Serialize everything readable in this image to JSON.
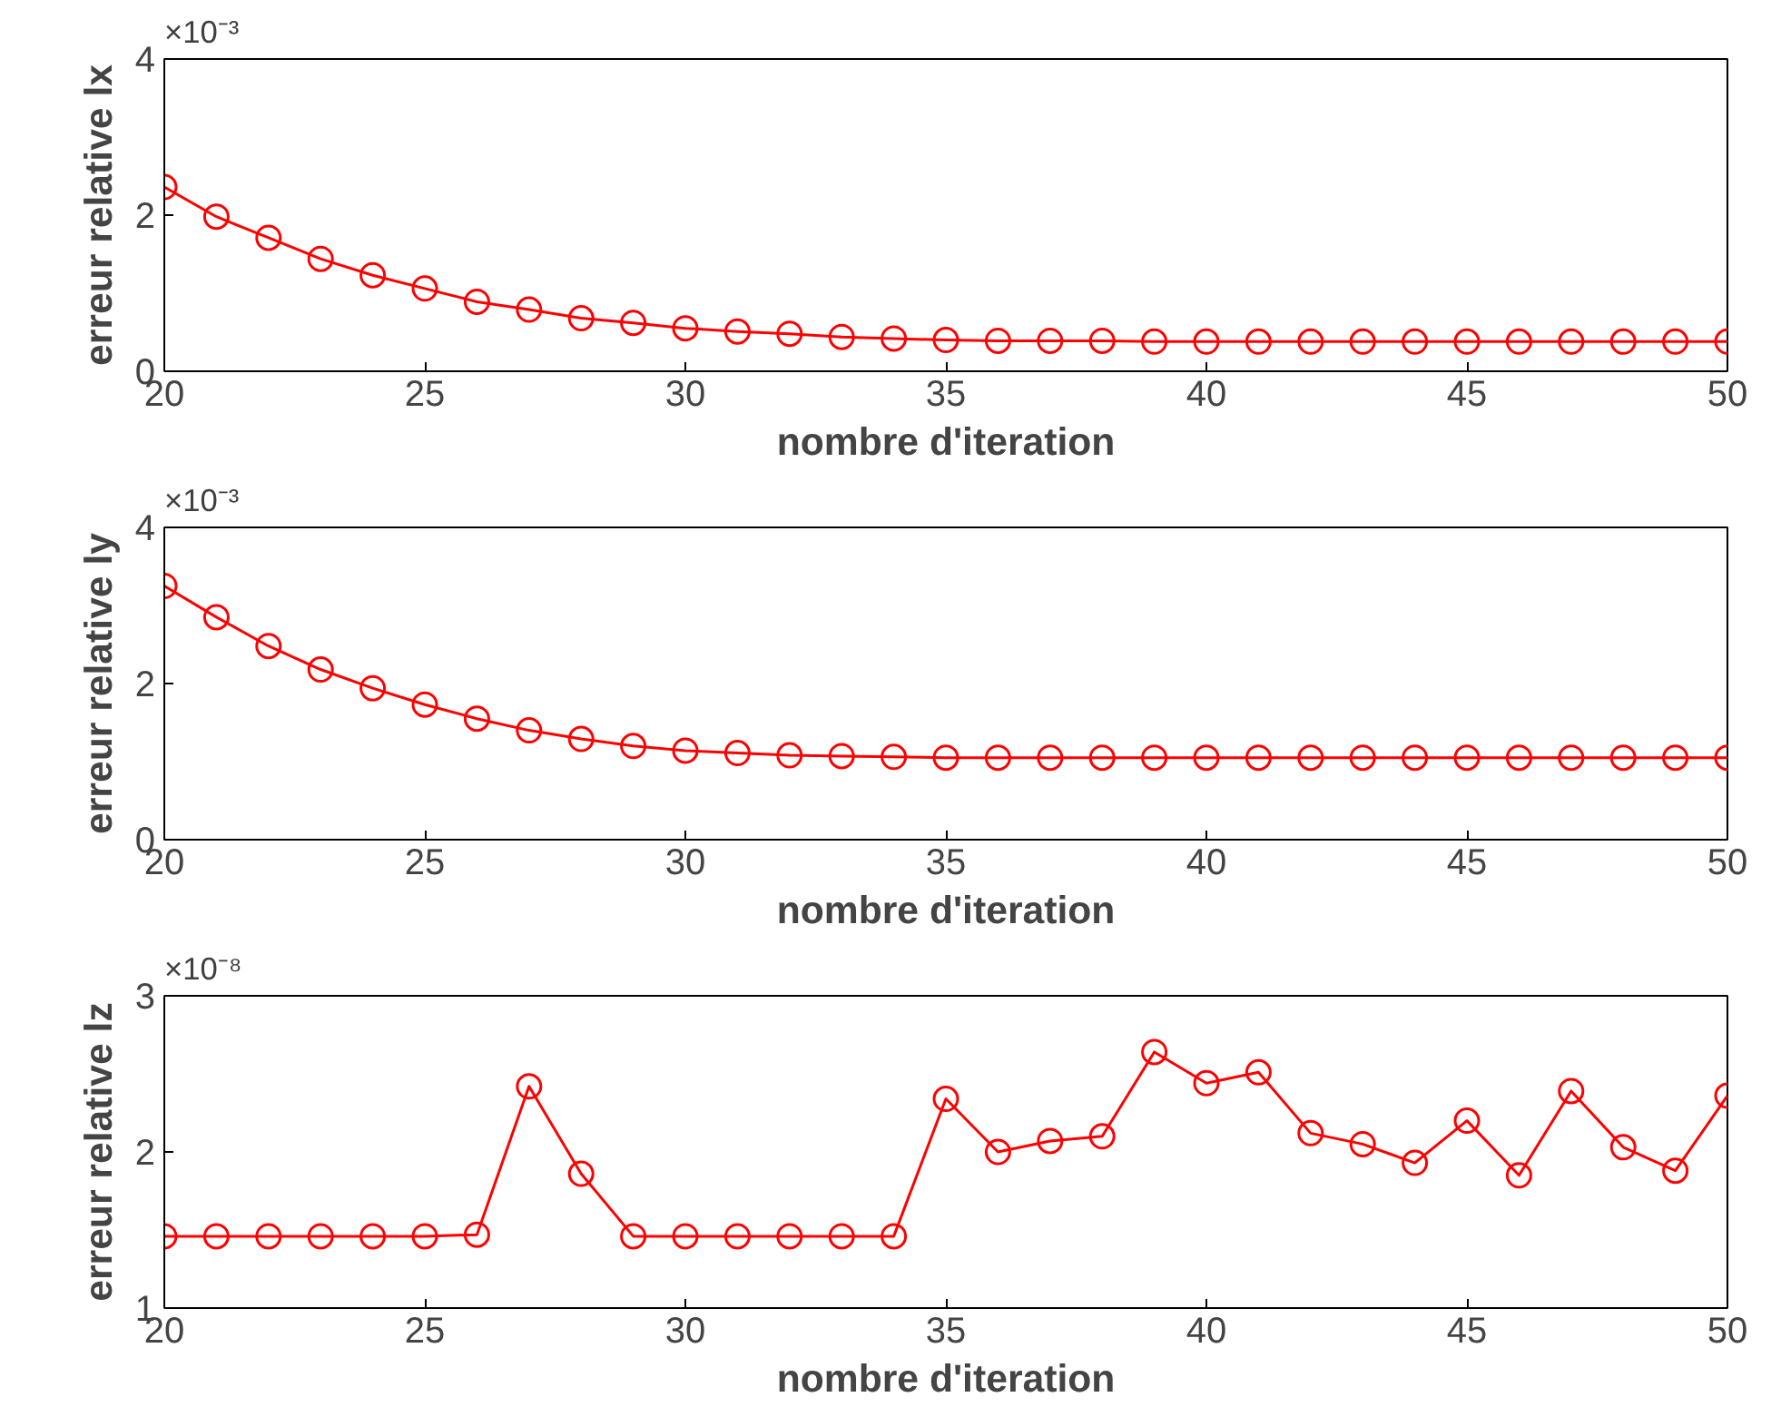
{
  "chart_data": [
    {
      "type": "line",
      "xlabel": "nombre d'iteration",
      "ylabel": "erreur relative lx",
      "annotations": [
        "×10⁻³"
      ],
      "x": [
        20,
        21,
        22,
        23,
        24,
        25,
        26,
        27,
        28,
        29,
        30,
        31,
        32,
        33,
        34,
        35,
        36,
        37,
        38,
        39,
        40,
        41,
        42,
        43,
        44,
        45,
        46,
        47,
        48,
        49,
        50
      ],
      "series": [
        {
          "color": "#ff0000",
          "values": [
            2.36,
            1.98,
            1.71,
            1.44,
            1.23,
            1.06,
            0.89,
            0.79,
            0.68,
            0.62,
            0.55,
            0.51,
            0.48,
            0.44,
            0.42,
            0.4,
            0.39,
            0.39,
            0.39,
            0.38,
            0.38,
            0.38,
            0.38,
            0.38,
            0.38,
            0.38,
            0.38,
            0.38,
            0.38,
            0.38,
            0.38
          ]
        }
      ],
      "xlim": [
        20,
        50
      ],
      "xticks": [
        20,
        25,
        30,
        35,
        40,
        45,
        50
      ],
      "ylim": [
        0,
        4
      ],
      "yticks": [
        0,
        2,
        4
      ],
      "marker": "circle",
      "line_style": "solid",
      "grid": false
    },
    {
      "type": "line",
      "xlabel": "nombre d'iteration",
      "ylabel": "erreur relative ly",
      "annotations": [
        "×10⁻³"
      ],
      "x": [
        20,
        21,
        22,
        23,
        24,
        25,
        26,
        27,
        28,
        29,
        30,
        31,
        32,
        33,
        34,
        35,
        36,
        37,
        38,
        39,
        40,
        41,
        42,
        43,
        44,
        45,
        46,
        47,
        48,
        49,
        50
      ],
      "series": [
        {
          "color": "#ff0000",
          "values": [
            3.25,
            2.85,
            2.48,
            2.18,
            1.94,
            1.73,
            1.55,
            1.4,
            1.29,
            1.2,
            1.14,
            1.11,
            1.08,
            1.07,
            1.06,
            1.05,
            1.05,
            1.05,
            1.05,
            1.05,
            1.05,
            1.05,
            1.05,
            1.05,
            1.05,
            1.05,
            1.05,
            1.05,
            1.05,
            1.05,
            1.05
          ]
        }
      ],
      "xlim": [
        20,
        50
      ],
      "xticks": [
        20,
        25,
        30,
        35,
        40,
        45,
        50
      ],
      "ylim": [
        0,
        4
      ],
      "yticks": [
        0,
        2,
        4
      ],
      "marker": "circle",
      "line_style": "solid",
      "grid": false
    },
    {
      "type": "line",
      "xlabel": "nombre d'iteration",
      "ylabel": "erreur relative lz",
      "annotations": [
        "×10⁻⁸"
      ],
      "x": [
        20,
        21,
        22,
        23,
        24,
        25,
        26,
        27,
        28,
        29,
        30,
        31,
        32,
        33,
        34,
        35,
        36,
        37,
        38,
        39,
        40,
        41,
        42,
        43,
        44,
        45,
        46,
        47,
        48,
        49,
        50
      ],
      "series": [
        {
          "color": "#ff0000",
          "values": [
            1.46,
            1.46,
            1.46,
            1.46,
            1.46,
            1.46,
            1.47,
            2.42,
            1.86,
            1.46,
            1.46,
            1.46,
            1.46,
            1.46,
            1.46,
            2.34,
            2.0,
            2.07,
            2.1,
            2.64,
            2.44,
            2.51,
            2.12,
            2.05,
            1.93,
            2.2,
            1.85,
            2.39,
            2.03,
            1.88,
            2.36
          ]
        }
      ],
      "xlim": [
        20,
        50
      ],
      "xticks": [
        20,
        25,
        30,
        35,
        40,
        45,
        50
      ],
      "ylim": [
        1,
        3
      ],
      "yticks": [
        1,
        2,
        3
      ],
      "marker": "circle",
      "line_style": "solid",
      "grid": false
    }
  ]
}
